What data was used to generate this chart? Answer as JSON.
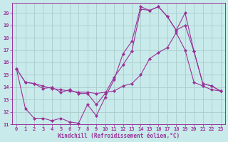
{
  "bg_color": "#c8eaea",
  "grid_color": "#aacccc",
  "line_color": "#993399",
  "marker": "D",
  "markersize": 2,
  "linewidth": 0.8,
  "xlim": [
    -0.5,
    23.5
  ],
  "ylim": [
    11,
    20.8
  ],
  "yticks": [
    11,
    12,
    13,
    14,
    15,
    16,
    17,
    18,
    19,
    20
  ],
  "xticks": [
    0,
    1,
    2,
    3,
    4,
    5,
    6,
    7,
    8,
    9,
    10,
    11,
    12,
    13,
    14,
    15,
    16,
    17,
    18,
    19,
    20,
    21,
    22,
    23
  ],
  "xlabel": "Windchill (Refroidissement éolien,°C)",
  "xlabel_fontsize": 5.5,
  "tick_fontsize": 5,
  "lines": [
    {
      "x": [
        0,
        1,
        2,
        3,
        4,
        5,
        6,
        7,
        8,
        9,
        10,
        11,
        12,
        13,
        14,
        15,
        16,
        17,
        18,
        19,
        20,
        21,
        22,
        23
      ],
      "y": [
        15.5,
        12.3,
        11.5,
        11.5,
        11.3,
        11.5,
        11.2,
        11.1,
        12.6,
        11.7,
        13.2,
        14.6,
        16.7,
        17.7,
        20.5,
        20.2,
        20.5,
        19.7,
        18.6,
        19.0,
        16.9,
        14.3,
        14.1,
        13.7
      ]
    },
    {
      "x": [
        0,
        1,
        2,
        3,
        4,
        5,
        6,
        7,
        8,
        9,
        10,
        11,
        12,
        13,
        14,
        15,
        16,
        17,
        18,
        19,
        20,
        21,
        22,
        23
      ],
      "y": [
        15.5,
        14.4,
        14.3,
        13.9,
        14.0,
        13.6,
        13.8,
        13.5,
        13.5,
        12.6,
        13.5,
        14.8,
        15.8,
        16.9,
        20.3,
        20.2,
        20.5,
        19.7,
        18.6,
        20.0,
        16.9,
        14.3,
        14.1,
        13.7
      ]
    },
    {
      "x": [
        0,
        1,
        2,
        3,
        4,
        5,
        6,
        7,
        8,
        9,
        10,
        11,
        12,
        13,
        14,
        15,
        16,
        17,
        18,
        19,
        20,
        21,
        22,
        23
      ],
      "y": [
        15.5,
        14.4,
        14.3,
        14.1,
        13.9,
        13.8,
        13.7,
        13.6,
        13.6,
        13.5,
        13.6,
        13.7,
        14.1,
        14.3,
        15.0,
        16.3,
        16.8,
        17.2,
        18.4,
        17.0,
        14.4,
        14.1,
        13.8,
        13.7
      ]
    }
  ]
}
